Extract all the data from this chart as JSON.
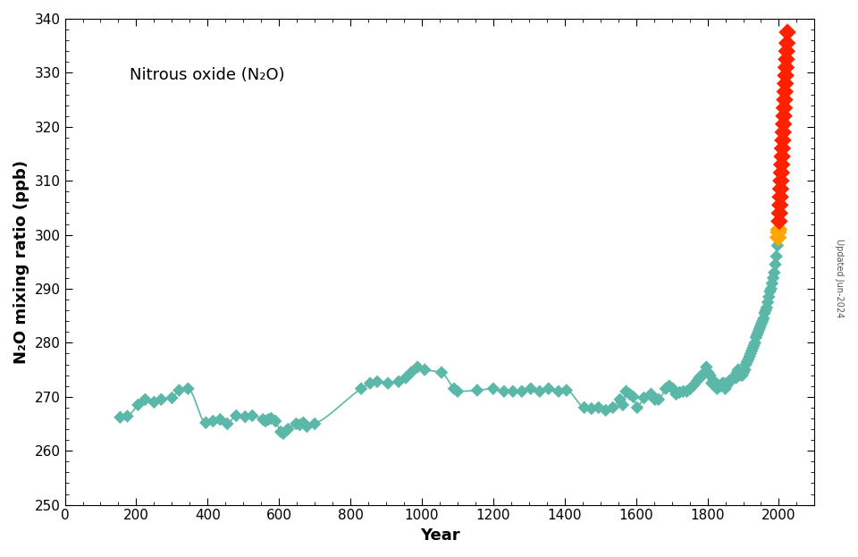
{
  "title": "Nitrous oxide (N₂O)",
  "xlabel": "Year",
  "ylabel": "N₂O mixing ratio (ppb)",
  "xlim": [
    0,
    2100
  ],
  "ylim": [
    250,
    340
  ],
  "yticks": [
    250,
    260,
    270,
    280,
    290,
    300,
    310,
    320,
    330,
    340
  ],
  "xticks": [
    0,
    200,
    400,
    600,
    800,
    1000,
    1200,
    1400,
    1600,
    1800,
    2000
  ],
  "watermark": "Updated Jun-2024",
  "teal_color": "#5BB8A8",
  "orange_color": "#FFA500",
  "red_color": "#FF2000",
  "ice_core_data": [
    [
      155,
      266.2
    ],
    [
      175,
      266.4
    ],
    [
      205,
      268.5
    ],
    [
      225,
      269.5
    ],
    [
      250,
      269.0
    ],
    [
      270,
      269.5
    ],
    [
      300,
      269.8
    ],
    [
      320,
      271.2
    ],
    [
      345,
      271.5
    ],
    [
      395,
      265.2
    ],
    [
      415,
      265.5
    ],
    [
      435,
      265.8
    ],
    [
      455,
      265.0
    ],
    [
      480,
      266.5
    ],
    [
      505,
      266.3
    ],
    [
      525,
      266.5
    ],
    [
      555,
      265.8
    ],
    [
      562,
      265.5
    ],
    [
      570,
      265.8
    ],
    [
      578,
      266.0
    ],
    [
      590,
      265.5
    ],
    [
      605,
      263.5
    ],
    [
      612,
      263.2
    ],
    [
      625,
      264.0
    ],
    [
      648,
      265.0
    ],
    [
      658,
      264.8
    ],
    [
      668,
      265.2
    ],
    [
      678,
      264.5
    ],
    [
      700,
      265.0
    ],
    [
      830,
      271.5
    ],
    [
      855,
      272.5
    ],
    [
      875,
      272.8
    ],
    [
      905,
      272.5
    ],
    [
      935,
      272.8
    ],
    [
      955,
      273.5
    ],
    [
      970,
      274.5
    ],
    [
      988,
      275.5
    ],
    [
      1008,
      275.0
    ],
    [
      1055,
      274.5
    ],
    [
      1090,
      271.5
    ],
    [
      1100,
      271.0
    ],
    [
      1155,
      271.2
    ],
    [
      1200,
      271.5
    ],
    [
      1230,
      271.0
    ],
    [
      1255,
      271.0
    ],
    [
      1280,
      271.0
    ],
    [
      1305,
      271.5
    ],
    [
      1330,
      271.0
    ],
    [
      1355,
      271.5
    ],
    [
      1383,
      271.0
    ],
    [
      1405,
      271.2
    ],
    [
      1455,
      268.0
    ],
    [
      1475,
      267.8
    ],
    [
      1495,
      268.0
    ],
    [
      1515,
      267.5
    ],
    [
      1535,
      268.0
    ],
    [
      1555,
      269.5
    ],
    [
      1563,
      268.5
    ],
    [
      1572,
      271.0
    ],
    [
      1582,
      270.5
    ],
    [
      1592,
      270.0
    ],
    [
      1603,
      268.0
    ],
    [
      1622,
      269.8
    ],
    [
      1642,
      270.5
    ],
    [
      1653,
      269.5
    ],
    [
      1663,
      269.5
    ],
    [
      1683,
      271.5
    ],
    [
      1693,
      272.0
    ],
    [
      1703,
      271.5
    ],
    [
      1712,
      270.5
    ],
    [
      1722,
      270.8
    ],
    [
      1732,
      271.0
    ],
    [
      1742,
      271.0
    ],
    [
      1752,
      271.5
    ],
    [
      1762,
      272.2
    ],
    [
      1772,
      273.0
    ],
    [
      1777,
      273.5
    ],
    [
      1782,
      273.8
    ],
    [
      1787,
      274.0
    ],
    [
      1792,
      274.5
    ],
    [
      1797,
      275.5
    ],
    [
      1802,
      274.5
    ],
    [
      1807,
      274.0
    ],
    [
      1812,
      272.5
    ],
    [
      1817,
      273.0
    ],
    [
      1822,
      272.5
    ],
    [
      1827,
      271.5
    ],
    [
      1832,
      272.0
    ],
    [
      1837,
      272.0
    ],
    [
      1842,
      272.5
    ],
    [
      1847,
      272.5
    ],
    [
      1850,
      271.5
    ],
    [
      1853,
      272.0
    ],
    [
      1857,
      272.5
    ],
    [
      1862,
      273.0
    ],
    [
      1867,
      273.0
    ],
    [
      1872,
      273.5
    ],
    [
      1877,
      273.8
    ],
    [
      1880,
      273.5
    ],
    [
      1883,
      274.5
    ],
    [
      1886,
      275.0
    ],
    [
      1889,
      274.0
    ],
    [
      1892,
      274.5
    ],
    [
      1895,
      274.0
    ],
    [
      1898,
      274.0
    ],
    [
      1901,
      274.5
    ],
    [
      1905,
      275.0
    ],
    [
      1908,
      276.0
    ],
    [
      1911,
      276.5
    ],
    [
      1915,
      277.0
    ],
    [
      1918,
      277.5
    ],
    [
      1921,
      278.0
    ],
    [
      1924,
      278.5
    ],
    [
      1927,
      279.0
    ],
    [
      1930,
      279.5
    ],
    [
      1933,
      280.0
    ],
    [
      1936,
      281.0
    ],
    [
      1939,
      281.5
    ],
    [
      1942,
      282.0
    ],
    [
      1945,
      282.5
    ],
    [
      1948,
      283.0
    ],
    [
      1951,
      283.5
    ],
    [
      1954,
      284.0
    ],
    [
      1957,
      284.5
    ],
    [
      1960,
      285.5
    ],
    [
      1963,
      286.0
    ],
    [
      1966,
      286.5
    ],
    [
      1969,
      287.5
    ],
    [
      1972,
      288.5
    ],
    [
      1975,
      289.5
    ],
    [
      1978,
      290.0
    ],
    [
      1981,
      291.0
    ],
    [
      1984,
      292.0
    ],
    [
      1987,
      293.0
    ],
    [
      1990,
      294.5
    ],
    [
      1993,
      296.0
    ],
    [
      1996,
      298.0
    ]
  ],
  "orange_data": [
    [
      1998,
      299.5
    ],
    [
      1999,
      300.5
    ],
    [
      2000,
      301.0
    ]
  ],
  "red_data": [
    [
      2001,
      302.5
    ],
    [
      2002,
      304.0
    ],
    [
      2003,
      305.5
    ],
    [
      2004,
      307.0
    ],
    [
      2005,
      308.5
    ],
    [
      2006,
      310.0
    ],
    [
      2007,
      311.5
    ],
    [
      2008,
      313.0
    ],
    [
      2009,
      314.5
    ],
    [
      2010,
      316.0
    ],
    [
      2011,
      317.5
    ],
    [
      2012,
      319.0
    ],
    [
      2013,
      320.5
    ],
    [
      2014,
      322.0
    ],
    [
      2015,
      323.5
    ],
    [
      2016,
      325.0
    ],
    [
      2017,
      326.5
    ],
    [
      2018,
      328.0
    ],
    [
      2019,
      329.5
    ],
    [
      2020,
      331.0
    ],
    [
      2021,
      332.5
    ],
    [
      2022,
      334.0
    ],
    [
      2023,
      335.5
    ],
    [
      2024,
      337.5
    ]
  ],
  "line_color": "#5BB8A8",
  "line_width": 1.2,
  "marker_size": 55,
  "figsize": [
    9.6,
    6.23
  ],
  "dpi": 100
}
